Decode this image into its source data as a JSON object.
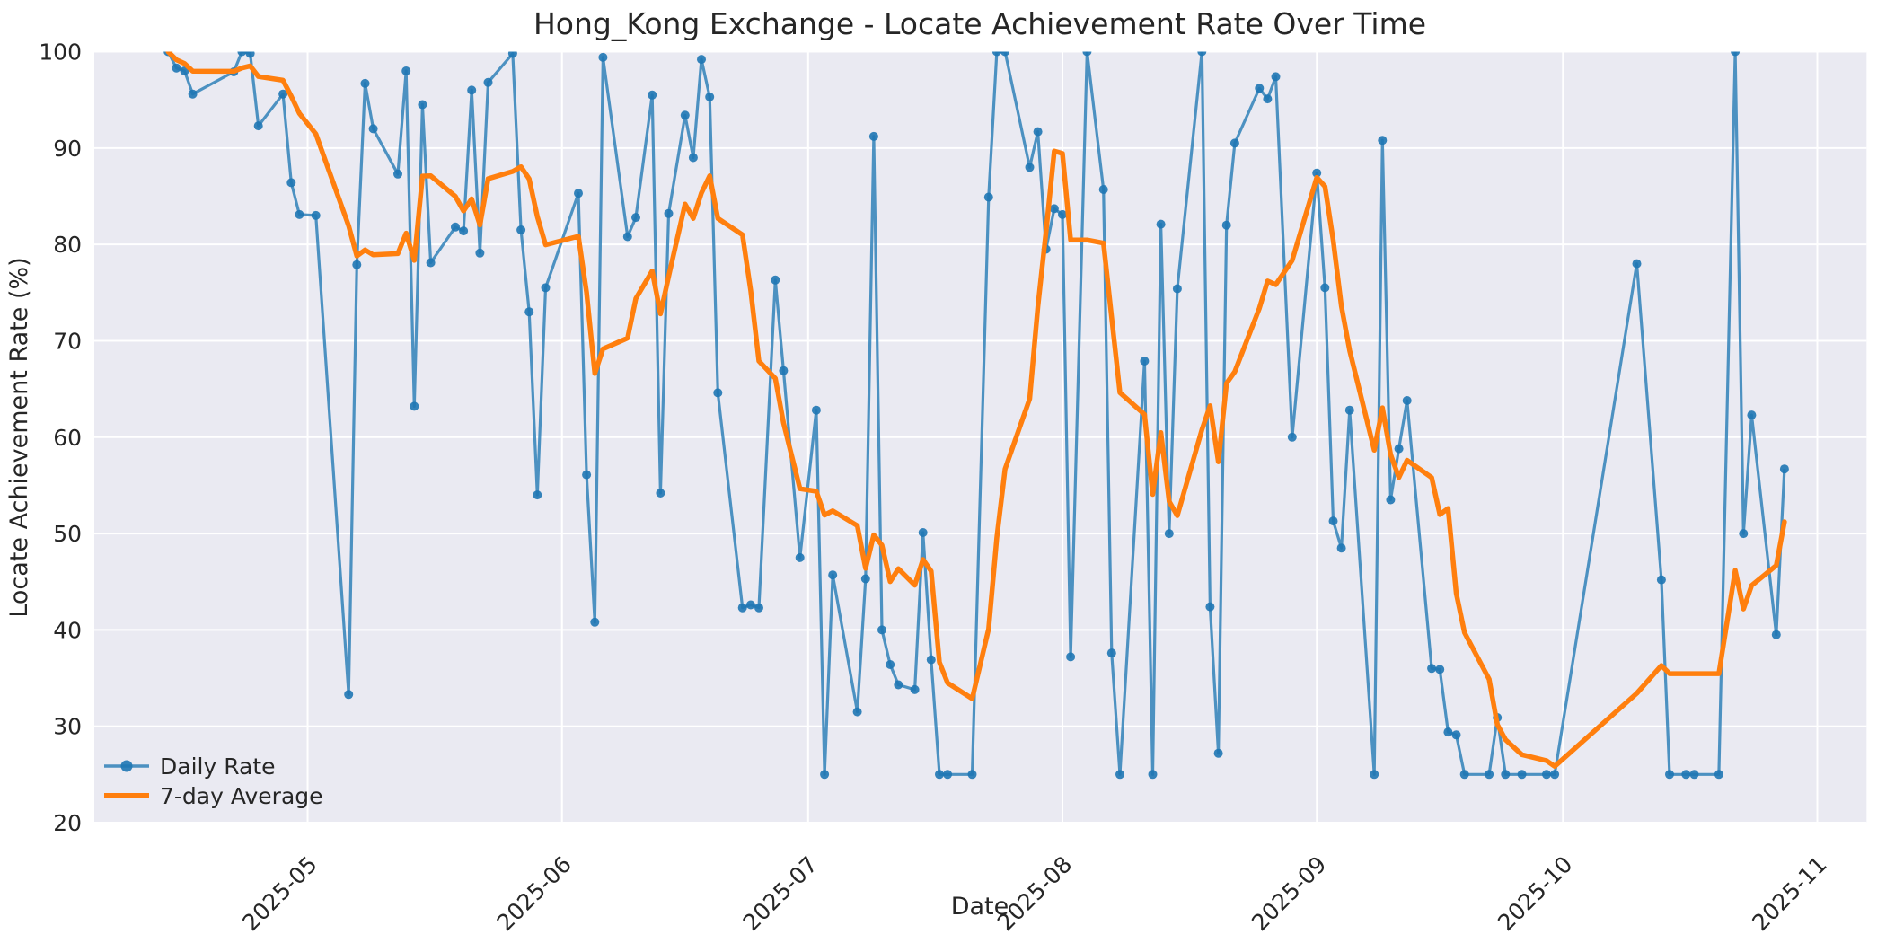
{
  "title": "Hong_Kong Exchange - Locate Achievement Rate Over Time",
  "x_axis_label": "Date",
  "y_axis_label": "Locate Achievement Rate (%)",
  "legend": {
    "position": "lower left",
    "daily_label": "Daily Rate",
    "avg_label": "7-day Average"
  },
  "colors": {
    "plot_background": "#eaeaf2",
    "figure_background": "#ffffff",
    "grid": "#ffffff",
    "daily_line": "#1f77b4",
    "daily_alpha": 0.78,
    "avg_line": "#ff7f0e",
    "text": "#262626"
  },
  "chart_data": {
    "type": "line",
    "title": "Hong_Kong Exchange - Locate Achievement Rate Over Time",
    "xlabel": "Date",
    "ylabel": "Locate Achievement Rate (%)",
    "ylim": [
      20,
      100
    ],
    "xlim": [
      "2025-04-05",
      "2025-11-07"
    ],
    "grid": true,
    "y_ticks": [
      20,
      30,
      40,
      50,
      60,
      70,
      80,
      90,
      100
    ],
    "x_ticks": [
      {
        "date": "2025-05-01",
        "label": "2025-05"
      },
      {
        "date": "2025-06-01",
        "label": "2025-06"
      },
      {
        "date": "2025-07-01",
        "label": "2025-07"
      },
      {
        "date": "2025-08-01",
        "label": "2025-08"
      },
      {
        "date": "2025-09-01",
        "label": "2025-09"
      },
      {
        "date": "2025-10-01",
        "label": "2025-10"
      },
      {
        "date": "2025-11-01",
        "label": "2025-11"
      }
    ],
    "series": [
      {
        "name": "Daily Rate",
        "style": "line+marker",
        "color": "#1f77b4",
        "alpha": 0.78,
        "points": [
          [
            "2025-04-14",
            100.0
          ],
          [
            "2025-04-15",
            98.3
          ],
          [
            "2025-04-16",
            98.0
          ],
          [
            "2025-04-17",
            95.6
          ],
          [
            "2025-04-22",
            97.9
          ],
          [
            "2025-04-23",
            100.0
          ],
          [
            "2025-04-24",
            99.8
          ],
          [
            "2025-04-25",
            92.3
          ],
          [
            "2025-04-28",
            95.6
          ],
          [
            "2025-04-29",
            86.4
          ],
          [
            "2025-04-30",
            83.1
          ],
          [
            "2025-05-02",
            83.0
          ],
          [
            "2025-05-06",
            33.3
          ],
          [
            "2025-05-07",
            77.9
          ],
          [
            "2025-05-08",
            96.7
          ],
          [
            "2025-05-09",
            92.0
          ],
          [
            "2025-05-12",
            87.3
          ],
          [
            "2025-05-13",
            98.0
          ],
          [
            "2025-05-14",
            63.2
          ],
          [
            "2025-05-15",
            94.5
          ],
          [
            "2025-05-16",
            78.1
          ],
          [
            "2025-05-19",
            81.8
          ],
          [
            "2025-05-20",
            81.4
          ],
          [
            "2025-05-21",
            96.0
          ],
          [
            "2025-05-22",
            79.1
          ],
          [
            "2025-05-23",
            96.8
          ],
          [
            "2025-05-26",
            99.8
          ],
          [
            "2025-05-27",
            81.5
          ],
          [
            "2025-05-28",
            73.0
          ],
          [
            "2025-05-29",
            54.0
          ],
          [
            "2025-05-30",
            75.5
          ],
          [
            "2025-06-03",
            85.3
          ],
          [
            "2025-06-04",
            56.1
          ],
          [
            "2025-06-05",
            40.8
          ],
          [
            "2025-06-06",
            99.4
          ],
          [
            "2025-06-09",
            80.8
          ],
          [
            "2025-06-10",
            82.8
          ],
          [
            "2025-06-12",
            95.5
          ],
          [
            "2025-06-13",
            54.2
          ],
          [
            "2025-06-14",
            83.2
          ],
          [
            "2025-06-16",
            93.4
          ],
          [
            "2025-06-17",
            89.0
          ],
          [
            "2025-06-18",
            99.2
          ],
          [
            "2025-06-19",
            95.3
          ],
          [
            "2025-06-20",
            64.6
          ],
          [
            "2025-06-23",
            42.3
          ],
          [
            "2025-06-24",
            42.6
          ],
          [
            "2025-06-25",
            42.3
          ],
          [
            "2025-06-27",
            76.3
          ],
          [
            "2025-06-28",
            66.9
          ],
          [
            "2025-06-30",
            47.5
          ],
          [
            "2025-07-02",
            62.8
          ],
          [
            "2025-07-03",
            25.0
          ],
          [
            "2025-07-04",
            45.7
          ],
          [
            "2025-07-07",
            31.5
          ],
          [
            "2025-07-08",
            45.3
          ],
          [
            "2025-07-09",
            91.2
          ],
          [
            "2025-07-10",
            40.0
          ],
          [
            "2025-07-11",
            36.4
          ],
          [
            "2025-07-12",
            34.3
          ],
          [
            "2025-07-14",
            33.8
          ],
          [
            "2025-07-15",
            50.1
          ],
          [
            "2025-07-16",
            36.9
          ],
          [
            "2025-07-17",
            25.0
          ],
          [
            "2025-07-18",
            25.0
          ],
          [
            "2025-07-21",
            25.0
          ],
          [
            "2025-07-23",
            84.9
          ],
          [
            "2025-07-24",
            100.0
          ],
          [
            "2025-07-25",
            100.0
          ],
          [
            "2025-07-28",
            88.0
          ],
          [
            "2025-07-29",
            91.7
          ],
          [
            "2025-07-30",
            79.5
          ],
          [
            "2025-07-31",
            83.7
          ],
          [
            "2025-08-01",
            83.1
          ],
          [
            "2025-08-02",
            37.2
          ],
          [
            "2025-08-04",
            100.0
          ],
          [
            "2025-08-06",
            85.7
          ],
          [
            "2025-08-07",
            37.6
          ],
          [
            "2025-08-08",
            25.0
          ],
          [
            "2025-08-11",
            67.9
          ],
          [
            "2025-08-12",
            25.0
          ],
          [
            "2025-08-13",
            82.1
          ],
          [
            "2025-08-14",
            50.0
          ],
          [
            "2025-08-15",
            75.4
          ],
          [
            "2025-08-18",
            100.0
          ],
          [
            "2025-08-19",
            42.4
          ],
          [
            "2025-08-20",
            27.2
          ],
          [
            "2025-08-21",
            82.0
          ],
          [
            "2025-08-22",
            90.5
          ],
          [
            "2025-08-25",
            96.2
          ],
          [
            "2025-08-26",
            95.1
          ],
          [
            "2025-08-27",
            97.4
          ],
          [
            "2025-08-29",
            60.0
          ],
          [
            "2025-09-01",
            87.4
          ],
          [
            "2025-09-02",
            75.5
          ],
          [
            "2025-09-03",
            51.3
          ],
          [
            "2025-09-04",
            48.5
          ],
          [
            "2025-09-05",
            62.8
          ],
          [
            "2025-09-08",
            25.0
          ],
          [
            "2025-09-09",
            90.8
          ],
          [
            "2025-09-10",
            53.5
          ],
          [
            "2025-09-11",
            58.8
          ],
          [
            "2025-09-12",
            63.8
          ],
          [
            "2025-09-15",
            36.0
          ],
          [
            "2025-09-16",
            35.9
          ],
          [
            "2025-09-17",
            29.4
          ],
          [
            "2025-09-18",
            29.1
          ],
          [
            "2025-09-19",
            25.0
          ],
          [
            "2025-09-22",
            25.0
          ],
          [
            "2025-09-23",
            30.9
          ],
          [
            "2025-09-24",
            25.0
          ],
          [
            "2025-09-26",
            25.0
          ],
          [
            "2025-09-29",
            25.0
          ],
          [
            "2025-09-30",
            25.0
          ],
          [
            "2025-10-10",
            78.0
          ],
          [
            "2025-10-13",
            45.2
          ],
          [
            "2025-10-14",
            25.0
          ],
          [
            "2025-10-16",
            25.0
          ],
          [
            "2025-10-17",
            25.0
          ],
          [
            "2025-10-20",
            25.0
          ],
          [
            "2025-10-22",
            100.0
          ],
          [
            "2025-10-23",
            50.0
          ],
          [
            "2025-10-24",
            62.3
          ],
          [
            "2025-10-27",
            39.5
          ],
          [
            "2025-10-28",
            56.7
          ]
        ]
      },
      {
        "name": "7-day Average",
        "style": "line",
        "color": "#ff7f0e",
        "derived": "rolling_mean_of_daily",
        "window": 7,
        "min_periods": 1
      }
    ]
  }
}
